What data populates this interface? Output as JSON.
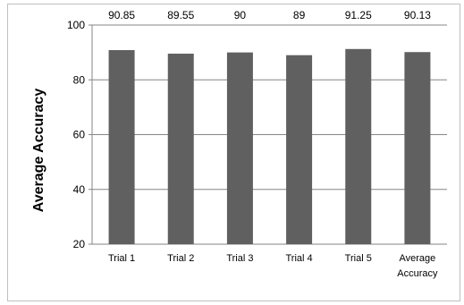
{
  "chart_data": {
    "type": "bar",
    "title": "",
    "xlabel": "",
    "ylabel": "Average Accuracy",
    "categories": [
      "Trial 1",
      "Trial 2",
      "Trial 3",
      "Trial 4",
      "Trial 5",
      "Average Accuracy"
    ],
    "values": [
      90.85,
      89.55,
      90,
      89,
      91.25,
      90.13
    ],
    "data_labels": [
      "90.85",
      "89.55",
      "90",
      "89",
      "91.25",
      "90.13"
    ],
    "ylim": [
      20,
      100
    ],
    "yticks": [
      20,
      40,
      60,
      80,
      100
    ],
    "grid": true,
    "legend": "none",
    "bar_color": "#606060",
    "gridline_color": "#868686"
  }
}
